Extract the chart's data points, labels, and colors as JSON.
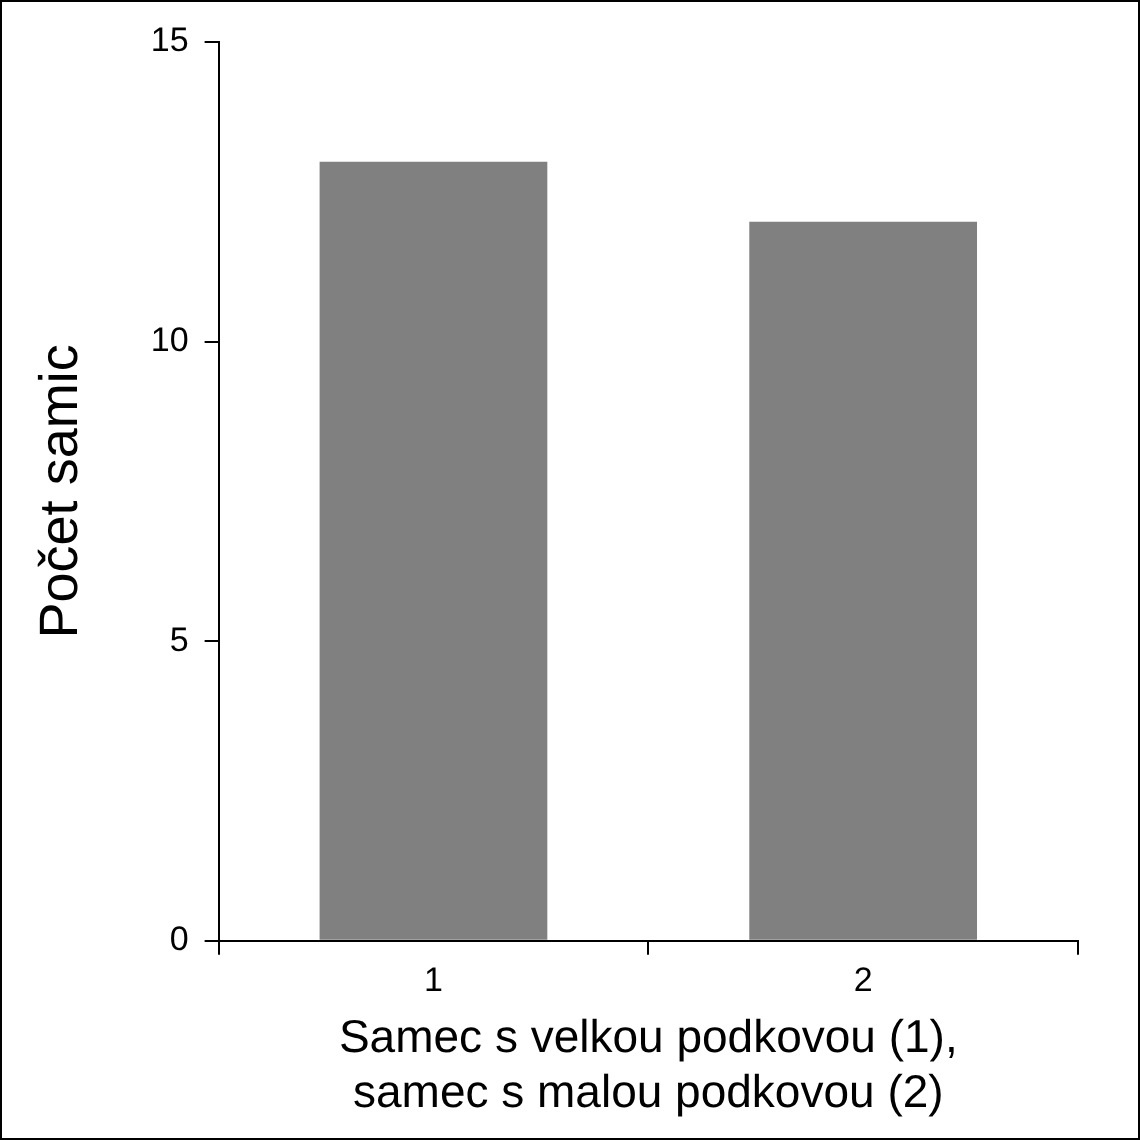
{
  "chart_data": {
    "type": "bar",
    "categories": [
      "1",
      "2"
    ],
    "values": [
      13,
      12
    ],
    "color": "#808080",
    "ylabel": "Počet samic",
    "xlabel": "Samec s velkou podkovou (1),\nsamec s malou podkovou (2)",
    "ylim": [
      0,
      15
    ],
    "yticks": [
      0,
      5,
      10,
      15
    ],
    "grid": false,
    "legend": false
  }
}
